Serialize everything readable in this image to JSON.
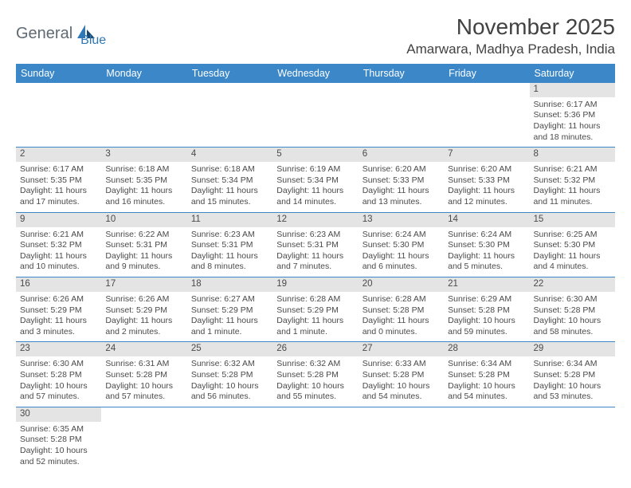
{
  "logo": {
    "part1": "General",
    "part2": "Blue"
  },
  "title": "November 2025",
  "location": "Amarwara, Madhya Pradesh, India",
  "colors": {
    "header_bg": "#3b87c8",
    "header_text": "#ffffff",
    "daynum_bg": "#e4e4e4",
    "text": "#4a4a4a",
    "rule": "#3b87c8",
    "logo_gray": "#5f6a72",
    "logo_blue": "#2f78b7"
  },
  "weekdays": [
    "Sunday",
    "Monday",
    "Tuesday",
    "Wednesday",
    "Thursday",
    "Friday",
    "Saturday"
  ],
  "weeks": [
    [
      null,
      null,
      null,
      null,
      null,
      null,
      {
        "n": "1",
        "sr": "Sunrise: 6:17 AM",
        "ss": "Sunset: 5:36 PM",
        "d1": "Daylight: 11 hours",
        "d2": "and 18 minutes."
      }
    ],
    [
      {
        "n": "2",
        "sr": "Sunrise: 6:17 AM",
        "ss": "Sunset: 5:35 PM",
        "d1": "Daylight: 11 hours",
        "d2": "and 17 minutes."
      },
      {
        "n": "3",
        "sr": "Sunrise: 6:18 AM",
        "ss": "Sunset: 5:35 PM",
        "d1": "Daylight: 11 hours",
        "d2": "and 16 minutes."
      },
      {
        "n": "4",
        "sr": "Sunrise: 6:18 AM",
        "ss": "Sunset: 5:34 PM",
        "d1": "Daylight: 11 hours",
        "d2": "and 15 minutes."
      },
      {
        "n": "5",
        "sr": "Sunrise: 6:19 AM",
        "ss": "Sunset: 5:34 PM",
        "d1": "Daylight: 11 hours",
        "d2": "and 14 minutes."
      },
      {
        "n": "6",
        "sr": "Sunrise: 6:20 AM",
        "ss": "Sunset: 5:33 PM",
        "d1": "Daylight: 11 hours",
        "d2": "and 13 minutes."
      },
      {
        "n": "7",
        "sr": "Sunrise: 6:20 AM",
        "ss": "Sunset: 5:33 PM",
        "d1": "Daylight: 11 hours",
        "d2": "and 12 minutes."
      },
      {
        "n": "8",
        "sr": "Sunrise: 6:21 AM",
        "ss": "Sunset: 5:32 PM",
        "d1": "Daylight: 11 hours",
        "d2": "and 11 minutes."
      }
    ],
    [
      {
        "n": "9",
        "sr": "Sunrise: 6:21 AM",
        "ss": "Sunset: 5:32 PM",
        "d1": "Daylight: 11 hours",
        "d2": "and 10 minutes."
      },
      {
        "n": "10",
        "sr": "Sunrise: 6:22 AM",
        "ss": "Sunset: 5:31 PM",
        "d1": "Daylight: 11 hours",
        "d2": "and 9 minutes."
      },
      {
        "n": "11",
        "sr": "Sunrise: 6:23 AM",
        "ss": "Sunset: 5:31 PM",
        "d1": "Daylight: 11 hours",
        "d2": "and 8 minutes."
      },
      {
        "n": "12",
        "sr": "Sunrise: 6:23 AM",
        "ss": "Sunset: 5:31 PM",
        "d1": "Daylight: 11 hours",
        "d2": "and 7 minutes."
      },
      {
        "n": "13",
        "sr": "Sunrise: 6:24 AM",
        "ss": "Sunset: 5:30 PM",
        "d1": "Daylight: 11 hours",
        "d2": "and 6 minutes."
      },
      {
        "n": "14",
        "sr": "Sunrise: 6:24 AM",
        "ss": "Sunset: 5:30 PM",
        "d1": "Daylight: 11 hours",
        "d2": "and 5 minutes."
      },
      {
        "n": "15",
        "sr": "Sunrise: 6:25 AM",
        "ss": "Sunset: 5:30 PM",
        "d1": "Daylight: 11 hours",
        "d2": "and 4 minutes."
      }
    ],
    [
      {
        "n": "16",
        "sr": "Sunrise: 6:26 AM",
        "ss": "Sunset: 5:29 PM",
        "d1": "Daylight: 11 hours",
        "d2": "and 3 minutes."
      },
      {
        "n": "17",
        "sr": "Sunrise: 6:26 AM",
        "ss": "Sunset: 5:29 PM",
        "d1": "Daylight: 11 hours",
        "d2": "and 2 minutes."
      },
      {
        "n": "18",
        "sr": "Sunrise: 6:27 AM",
        "ss": "Sunset: 5:29 PM",
        "d1": "Daylight: 11 hours",
        "d2": "and 1 minute."
      },
      {
        "n": "19",
        "sr": "Sunrise: 6:28 AM",
        "ss": "Sunset: 5:29 PM",
        "d1": "Daylight: 11 hours",
        "d2": "and 1 minute."
      },
      {
        "n": "20",
        "sr": "Sunrise: 6:28 AM",
        "ss": "Sunset: 5:28 PM",
        "d1": "Daylight: 11 hours",
        "d2": "and 0 minutes."
      },
      {
        "n": "21",
        "sr": "Sunrise: 6:29 AM",
        "ss": "Sunset: 5:28 PM",
        "d1": "Daylight: 10 hours",
        "d2": "and 59 minutes."
      },
      {
        "n": "22",
        "sr": "Sunrise: 6:30 AM",
        "ss": "Sunset: 5:28 PM",
        "d1": "Daylight: 10 hours",
        "d2": "and 58 minutes."
      }
    ],
    [
      {
        "n": "23",
        "sr": "Sunrise: 6:30 AM",
        "ss": "Sunset: 5:28 PM",
        "d1": "Daylight: 10 hours",
        "d2": "and 57 minutes."
      },
      {
        "n": "24",
        "sr": "Sunrise: 6:31 AM",
        "ss": "Sunset: 5:28 PM",
        "d1": "Daylight: 10 hours",
        "d2": "and 57 minutes."
      },
      {
        "n": "25",
        "sr": "Sunrise: 6:32 AM",
        "ss": "Sunset: 5:28 PM",
        "d1": "Daylight: 10 hours",
        "d2": "and 56 minutes."
      },
      {
        "n": "26",
        "sr": "Sunrise: 6:32 AM",
        "ss": "Sunset: 5:28 PM",
        "d1": "Daylight: 10 hours",
        "d2": "and 55 minutes."
      },
      {
        "n": "27",
        "sr": "Sunrise: 6:33 AM",
        "ss": "Sunset: 5:28 PM",
        "d1": "Daylight: 10 hours",
        "d2": "and 54 minutes."
      },
      {
        "n": "28",
        "sr": "Sunrise: 6:34 AM",
        "ss": "Sunset: 5:28 PM",
        "d1": "Daylight: 10 hours",
        "d2": "and 54 minutes."
      },
      {
        "n": "29",
        "sr": "Sunrise: 6:34 AM",
        "ss": "Sunset: 5:28 PM",
        "d1": "Daylight: 10 hours",
        "d2": "and 53 minutes."
      }
    ],
    [
      {
        "n": "30",
        "sr": "Sunrise: 6:35 AM",
        "ss": "Sunset: 5:28 PM",
        "d1": "Daylight: 10 hours",
        "d2": "and 52 minutes."
      },
      null,
      null,
      null,
      null,
      null,
      null
    ]
  ]
}
